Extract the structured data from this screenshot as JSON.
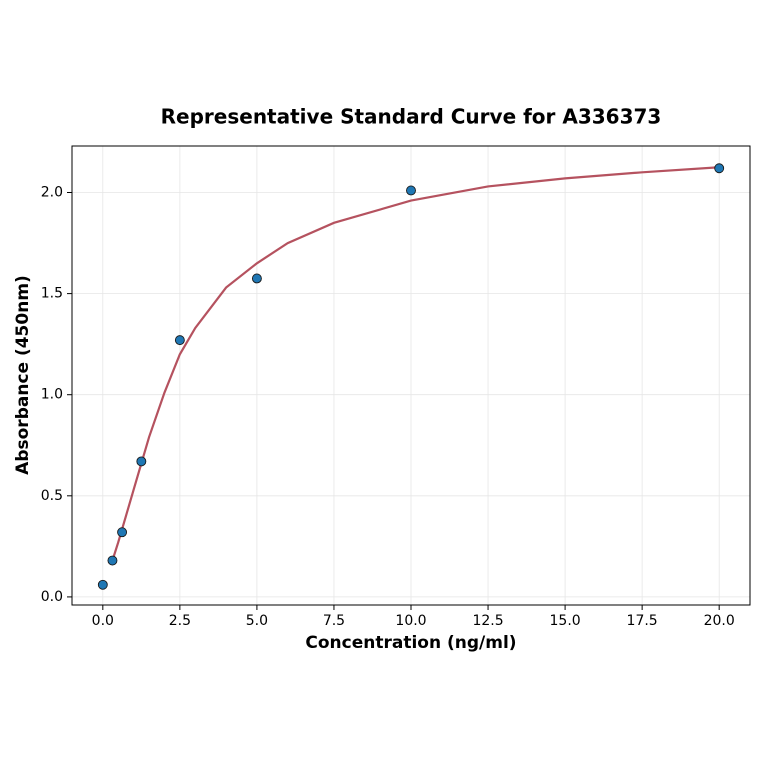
{
  "chart_data": {
    "type": "scatter",
    "title": "Representative Standard Curve for A336373",
    "x_label": "Concentration (ng/ml)",
    "y_label": "Absorbance (450nm)",
    "xlim": [
      -1.0,
      21.0
    ],
    "ylim": [
      -0.04,
      2.23
    ],
    "xticks": [
      {
        "value": 0,
        "label": "0.0"
      },
      {
        "value": 2.5,
        "label": "2.5"
      },
      {
        "value": 5,
        "label": "5.0"
      },
      {
        "value": 7.5,
        "label": "7.5"
      },
      {
        "value": 10,
        "label": "10.0"
      },
      {
        "value": 12.5,
        "label": "12.5"
      },
      {
        "value": 15,
        "label": "15.0"
      },
      {
        "value": 17.5,
        "label": "17.5"
      },
      {
        "value": 20,
        "label": "20.0"
      }
    ],
    "yticks": [
      {
        "value": 0,
        "label": "0.0"
      },
      {
        "value": 0.5,
        "label": "0.5"
      },
      {
        "value": 1,
        "label": "1.0"
      },
      {
        "value": 1.5,
        "label": "1.5"
      },
      {
        "value": 2,
        "label": "2.0"
      }
    ],
    "grid": true,
    "series": [
      {
        "mode": "line",
        "color": "#b5525f",
        "x": [
          0.3125,
          0.5,
          0.75,
          1,
          1.5,
          2,
          2.5,
          3,
          4,
          5,
          6,
          7.5,
          10,
          12.5,
          15,
          17.5,
          20
        ],
        "values": [
          0.18,
          0.27,
          0.4,
          0.53,
          0.79,
          1.01,
          1.2,
          1.33,
          1.53,
          1.65,
          1.75,
          1.85,
          1.96,
          2.03,
          2.07,
          2.1,
          2.125
        ]
      },
      {
        "mode": "markers",
        "color": "#1f77b4",
        "x": [
          0,
          0.3125,
          0.625,
          1.25,
          2.5,
          5,
          10,
          20
        ],
        "values": [
          0.06,
          0.18,
          0.32,
          0.67,
          1.27,
          1.575,
          2.01,
          2.12
        ]
      }
    ]
  }
}
